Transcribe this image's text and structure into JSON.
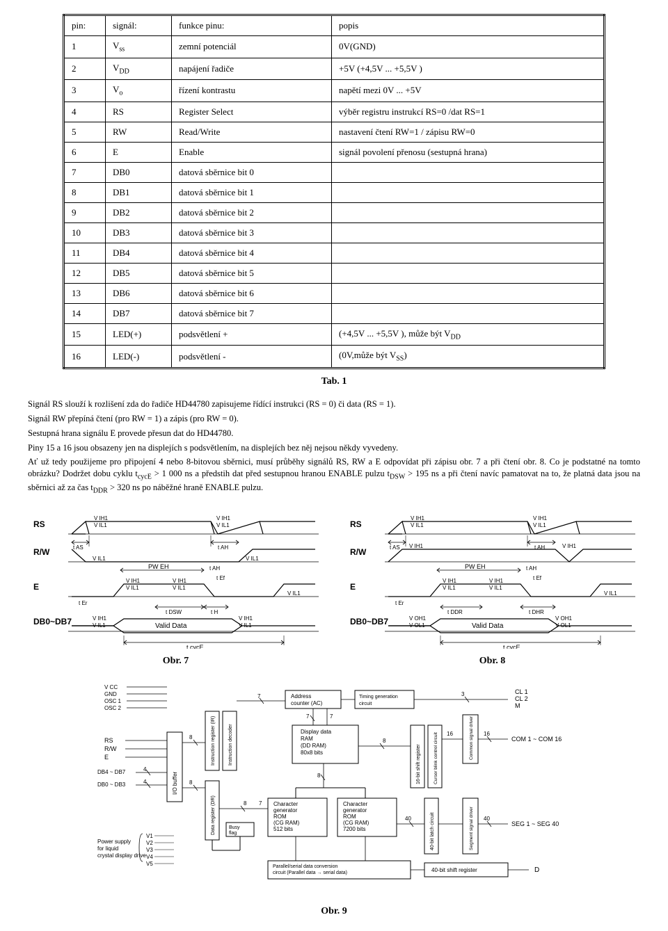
{
  "table": {
    "headers": [
      "pin:",
      "signál:",
      "funkce pinu:",
      "popis"
    ],
    "rows": [
      [
        "1",
        "V<sub>ss</sub>",
        "zemní potenciál",
        "0V(GND)"
      ],
      [
        "2",
        "V<sub>DD</sub>",
        "napájení řadiče",
        "+5V (+4,5V ... +5,5V )"
      ],
      [
        "3",
        "V<sub>o</sub>",
        "řízení kontrastu",
        "napětí mezi 0V ... +5V"
      ],
      [
        "4",
        "RS",
        "Register Select",
        "výběr registru instrukcí RS=0 /dat RS=1"
      ],
      [
        "5",
        "RW",
        "Read/Write",
        "nastavení čtení RW=1 / zápisu RW=0"
      ],
      [
        "6",
        "E",
        "Enable",
        "signál povolení přenosu (sestupná hrana)"
      ],
      [
        "7",
        "DB0",
        "datová sběrnice bit 0",
        ""
      ],
      [
        "8",
        "DB1",
        "datová sběrnice bit 1",
        ""
      ],
      [
        "9",
        "DB2",
        "datová sběrnice bit 2",
        ""
      ],
      [
        "10",
        "DB3",
        "datová sběrnice bit 3",
        ""
      ],
      [
        "11",
        "DB4",
        "datová sběrnice bit 4",
        ""
      ],
      [
        "12",
        "DB5",
        "datová sběrnice bit 5",
        ""
      ],
      [
        "13",
        "DB6",
        "datová sběrnice bit 6",
        ""
      ],
      [
        "14",
        "DB7",
        "datová sběrnice bit 7",
        ""
      ],
      [
        "15",
        "LED(+)",
        "podsvětlení +",
        "(+4,5V ... +5,5V ), může být V<sub>DD</sub>"
      ],
      [
        "16",
        "LED(-)",
        "podsvětlení -",
        "(0V,může být V<sub>SS</sub>)"
      ]
    ],
    "col_widths": [
      "60px",
      "95px",
      "230px",
      "auto"
    ],
    "border_color": "#000000",
    "font_size": 13
  },
  "captions": {
    "tab1": "Tab. 1",
    "obr7": "Obr. 7",
    "obr8": "Obr. 8",
    "obr9": "Obr. 9"
  },
  "paragraphs": {
    "p1": "Signál RS slouží k rozlišení zda do řadiče HD44780 zapisujeme řídící instrukci (RS = 0) či data (RS = 1).",
    "p2": "Signál RW přepíná čtení (pro RW = 1) a zápis (pro RW = 0).",
    "p3": "Sestupná hrana signálu E provede přesun dat do HD44780.",
    "p4": "Piny 15 a 16 jsou obsazeny jen na displejích s podsvětlením, na displejích bez něj nejsou někdy vyvedeny.",
    "p5": "Ať už tedy použijeme pro připojení 4 nebo 8-bitovou sběrnici, musí průběhy signálů RS, RW a E odpovídat při zápisu obr. 7 a při čtení obr. 8. Co je podstatné na tomto obrázku? Dodržet dobu cyklu t<sub>cycE</sub> > 1 000 ns a předstih dat před sestupnou hranou ENABLE pulzu t<sub>DSW</sub> > 195 ns a při čtení navíc pamatovat na to, že platná data jsou na sběrnici až za čas t<sub>DDR</sub> > 320 ns po náběžné hraně ENABLE pulzu."
  },
  "timing_write": {
    "type": "timing-diagram",
    "signals": [
      "RS",
      "R/W",
      "E",
      "DB0~DB7"
    ],
    "labels": [
      "V IH1",
      "V IL1",
      "t AS",
      "t AH",
      "PW EH",
      "t Er",
      "t Ef",
      "t DSW",
      "t H",
      "Valid Data",
      "t cycE"
    ],
    "text_color": "#000000",
    "line_color": "#000000",
    "background": "#ffffff",
    "font_size": 9
  },
  "timing_read": {
    "type": "timing-diagram",
    "signals": [
      "RS",
      "R/W",
      "E",
      "DB0~DB7"
    ],
    "labels": [
      "V IH1",
      "V IL1",
      "t AS",
      "t AH",
      "PW EH",
      "t Er",
      "t Ef",
      "t DDR",
      "t DHR",
      "Valid Data",
      "V OH1",
      "V OL1",
      "t cycE"
    ],
    "text_color": "#000000",
    "line_color": "#000000",
    "background": "#ffffff",
    "font_size": 9
  },
  "block_diagram": {
    "type": "block-diagram",
    "inputs_left": [
      "V CC",
      "GND",
      "OSC 1",
      "OSC 2",
      "RS",
      "R/W",
      "E",
      "DB4 ~ DB7",
      "DB0 ~ DB3"
    ],
    "power_supply_label": "Power supply for liquid crystal display drive",
    "power_pins": [
      "V1",
      "V2",
      "V3",
      "V4",
      "V5"
    ],
    "blocks": [
      "I/O buffer",
      "Instruction register (IR)",
      "Instruction decoder",
      "Data register (DR)",
      "Busy flag",
      "Address counter (AC)",
      "Timing generation circuit",
      "Display data RAM (DD RAM) 80x8 bits",
      "Character generator ROM (CG RAM) 512 bits",
      "Character generator ROM (CG RAM) 7200 bits",
      "Parallel/serial data conversion circuit (Parallel data → serial data)",
      "16-bit shift register",
      "Cursor blink control circuit",
      "40-bit latch circuit",
      "Common signal driver",
      "Segment signal driver",
      "40-bit shift register"
    ],
    "outputs_right": [
      {
        "label": "CL 1",
        "pin": "3"
      },
      {
        "label": "CL 2",
        "pin": ""
      },
      {
        "label": "M",
        "pin": ""
      },
      {
        "label": "COM 1 ~ COM 16",
        "pin": "16"
      },
      {
        "label": "SEG 1 ~ SEG 40",
        "pin": "40"
      },
      {
        "label": "D",
        "pin": ""
      }
    ],
    "bus_widths": [
      "8",
      "4",
      "4",
      "7",
      "7",
      "8",
      "8",
      "7",
      "40",
      "8",
      "16"
    ],
    "line_color": "#000000",
    "background": "#ffffff",
    "font_size": 8
  }
}
